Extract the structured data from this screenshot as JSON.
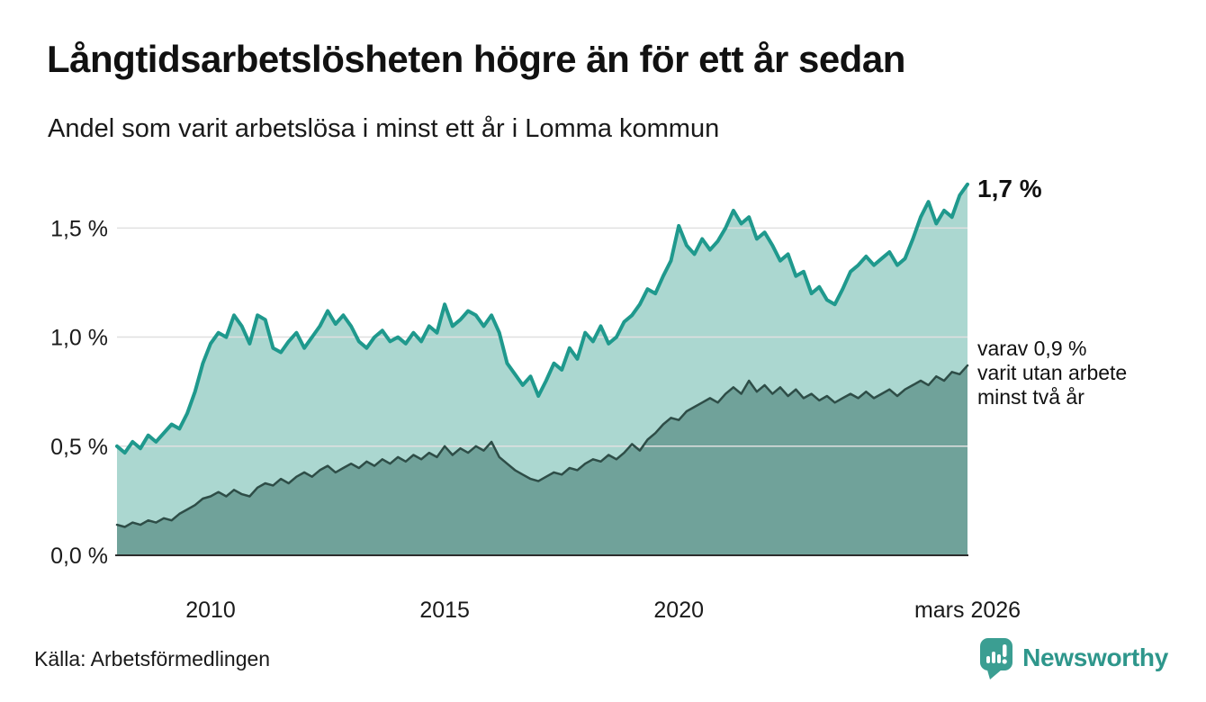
{
  "header": {
    "title": "Långtidsarbetslösheten högre än för ett år sedan",
    "subtitle": "Andel som varit arbetslösa i minst ett år i Lomma kommun"
  },
  "annotations": {
    "latest_value": "1,7 %",
    "secondary_line1": "varav 0,9 %",
    "secondary_line2": "varit utan arbete",
    "secondary_line3": "minst två år"
  },
  "footer": {
    "source": "Källa: Arbetsförmedlingen",
    "brand": "Newsworthy"
  },
  "colors": {
    "primary_line": "#1f998d",
    "primary_fill": "#abd7d0",
    "secondary_line": "#2e4d47",
    "secondary_fill": "#70a29a",
    "gridline": "#e0e0e0",
    "axis": "#2d2d2d",
    "text": "#1a1a1a",
    "brand_teal": "#2e968b"
  },
  "chart_data": {
    "type": "area",
    "title": "Långtidsarbetslösheten högre än för ett år sedan",
    "subtitle": "Andel som varit arbetslösa i minst ett år i Lomma kommun",
    "xlabel": "",
    "ylabel": "",
    "unit": "%",
    "grid": "horizontal",
    "legend_position": "none",
    "x_domain": [
      2008,
      2026.1667
    ],
    "x_start": 2008,
    "x_step_years": 0.1666667,
    "ylim": [
      0,
      1.72
    ],
    "x_ticks": [
      {
        "v": 2010,
        "label": "2010"
      },
      {
        "v": 2015,
        "label": "2015"
      },
      {
        "v": 2020,
        "label": "2020"
      },
      {
        "v": 2026.1667,
        "label": "mars 2026"
      }
    ],
    "y_ticks": [
      {
        "v": 0.0,
        "label": "0,0 %"
      },
      {
        "v": 0.5,
        "label": "0,5 %"
      },
      {
        "v": 1.0,
        "label": "1,0 %"
      },
      {
        "v": 1.5,
        "label": "1,5 %"
      }
    ],
    "series": [
      {
        "name": "Andel arbetslösa minst ett år",
        "latest_value": 1.7,
        "line_color": "#1f998d",
        "fill_color": "#abd7d0",
        "line_width": 4,
        "values": [
          0.5,
          0.47,
          0.52,
          0.49,
          0.55,
          0.52,
          0.56,
          0.6,
          0.58,
          0.65,
          0.75,
          0.88,
          0.97,
          1.02,
          1.0,
          1.1,
          1.05,
          0.97,
          1.1,
          1.08,
          0.95,
          0.93,
          0.98,
          1.02,
          0.95,
          1.0,
          1.05,
          1.12,
          1.06,
          1.1,
          1.05,
          0.98,
          0.95,
          1.0,
          1.03,
          0.98,
          1.0,
          0.97,
          1.02,
          0.98,
          1.05,
          1.02,
          1.15,
          1.05,
          1.08,
          1.12,
          1.1,
          1.05,
          1.1,
          1.02,
          0.88,
          0.83,
          0.78,
          0.82,
          0.73,
          0.8,
          0.88,
          0.85,
          0.95,
          0.9,
          1.02,
          0.98,
          1.05,
          0.97,
          1.0,
          1.07,
          1.1,
          1.15,
          1.22,
          1.2,
          1.28,
          1.35,
          1.51,
          1.42,
          1.38,
          1.45,
          1.4,
          1.44,
          1.5,
          1.58,
          1.52,
          1.55,
          1.45,
          1.48,
          1.42,
          1.35,
          1.38,
          1.28,
          1.3,
          1.2,
          1.23,
          1.17,
          1.15,
          1.22,
          1.3,
          1.33,
          1.37,
          1.33,
          1.36,
          1.39,
          1.33,
          1.36,
          1.45,
          1.55,
          1.62,
          1.52,
          1.58,
          1.55,
          1.65,
          1.7
        ]
      },
      {
        "name": "varav arbetslösa minst två år",
        "latest_value": 0.9,
        "line_color": "#2e4d47",
        "fill_color": "#70a29a",
        "line_width": 2.5,
        "values": [
          0.14,
          0.13,
          0.15,
          0.14,
          0.16,
          0.15,
          0.17,
          0.16,
          0.19,
          0.21,
          0.23,
          0.26,
          0.27,
          0.29,
          0.27,
          0.3,
          0.28,
          0.27,
          0.31,
          0.33,
          0.32,
          0.35,
          0.33,
          0.36,
          0.38,
          0.36,
          0.39,
          0.41,
          0.38,
          0.4,
          0.42,
          0.4,
          0.43,
          0.41,
          0.44,
          0.42,
          0.45,
          0.43,
          0.46,
          0.44,
          0.47,
          0.45,
          0.5,
          0.46,
          0.49,
          0.47,
          0.5,
          0.48,
          0.52,
          0.45,
          0.42,
          0.39,
          0.37,
          0.35,
          0.34,
          0.36,
          0.38,
          0.37,
          0.4,
          0.39,
          0.42,
          0.44,
          0.43,
          0.46,
          0.44,
          0.47,
          0.51,
          0.48,
          0.53,
          0.56,
          0.6,
          0.63,
          0.62,
          0.66,
          0.68,
          0.7,
          0.72,
          0.7,
          0.74,
          0.77,
          0.74,
          0.8,
          0.75,
          0.78,
          0.74,
          0.77,
          0.73,
          0.76,
          0.72,
          0.74,
          0.71,
          0.73,
          0.7,
          0.72,
          0.74,
          0.72,
          0.75,
          0.72,
          0.74,
          0.76,
          0.73,
          0.76,
          0.78,
          0.8,
          0.78,
          0.82,
          0.8,
          0.84,
          0.83,
          0.87
        ]
      }
    ]
  }
}
